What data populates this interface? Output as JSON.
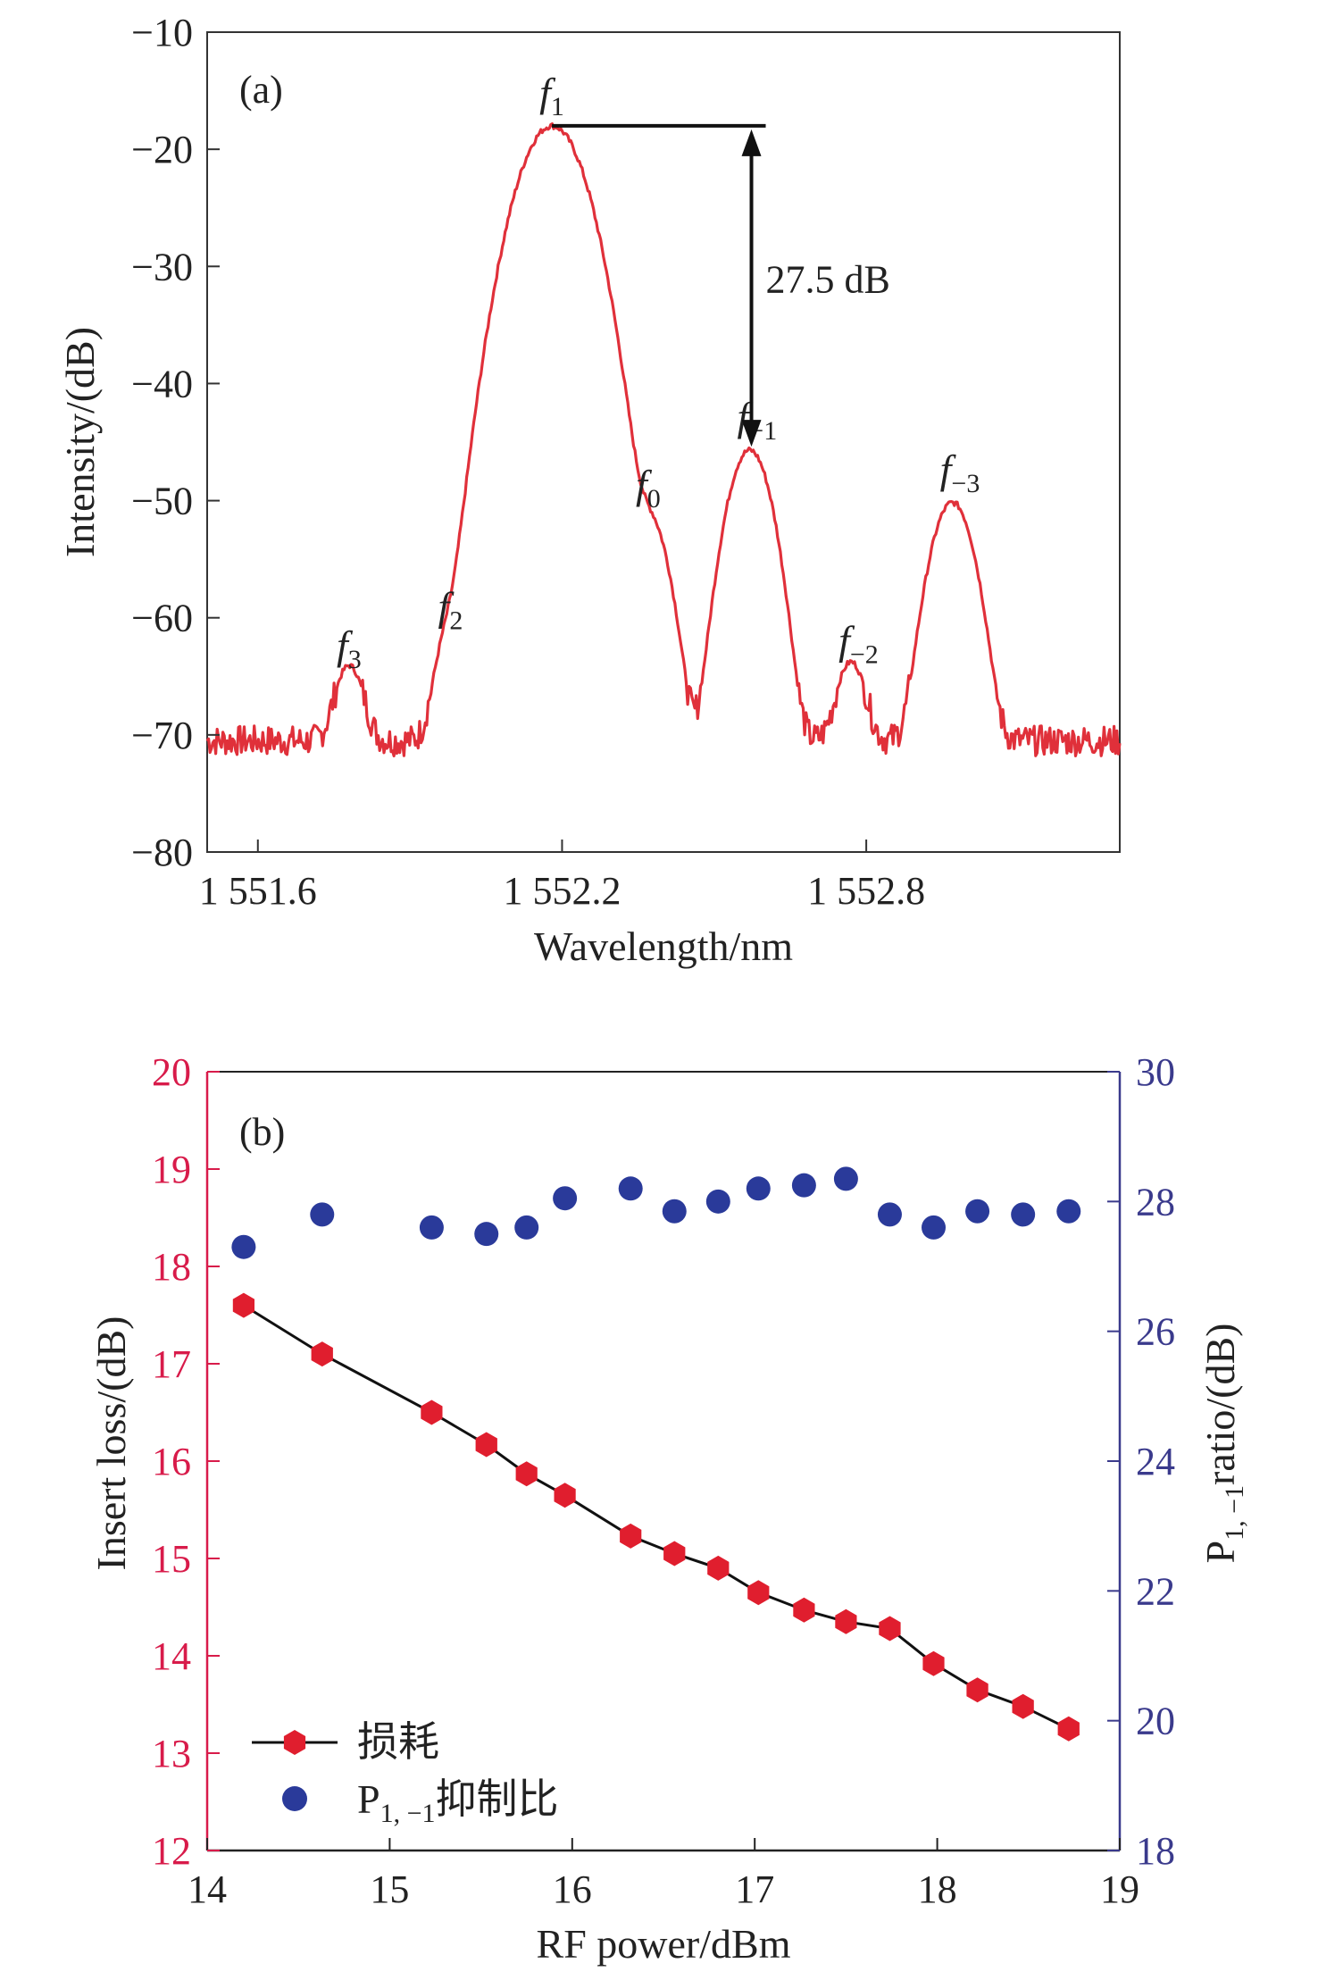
{
  "chart_data": [
    {
      "type": "line",
      "panel_label": "(a)",
      "xlabel": "Wavelength/nm",
      "ylabel": "Intensity/(dB)",
      "xlim": [
        1551.5,
        1553.3
      ],
      "ylim": [
        -80,
        -10
      ],
      "xticks": [
        {
          "value": 1551.6,
          "label": "1 551.6"
        },
        {
          "value": 1552.2,
          "label": "1 552.2"
        },
        {
          "value": 1552.8,
          "label": "1 552.8"
        }
      ],
      "yticks": [
        {
          "value": -10,
          "label": "−10"
        },
        {
          "value": -20,
          "label": "−20"
        },
        {
          "value": -30,
          "label": "−30"
        },
        {
          "value": -40,
          "label": "−40"
        },
        {
          "value": -50,
          "label": "−50"
        },
        {
          "value": -60,
          "label": "−60"
        },
        {
          "value": -70,
          "label": "−70"
        },
        {
          "value": -80,
          "label": "−80"
        }
      ],
      "grid": false,
      "line_color": "#e0303a",
      "baseline_db": -70.5,
      "peaks": [
        {
          "base": "f",
          "sub": "3",
          "x": 1551.78,
          "y": -65.2
        },
        {
          "base": "f",
          "sub": "2",
          "x": 1551.98,
          "y": -61.9
        },
        {
          "base": "f",
          "sub": "1",
          "x": 1552.18,
          "y": -18.0
        },
        {
          "base": "f",
          "sub": "0",
          "x": 1552.37,
          "y": -51.5
        },
        {
          "base": "f",
          "sub": "−1",
          "x": 1552.57,
          "y": -45.7
        },
        {
          "base": "f",
          "sub": "−2",
          "x": 1552.77,
          "y": -64.8
        },
        {
          "base": "f",
          "sub": "−3",
          "x": 1552.97,
          "y": -50.2
        }
      ],
      "annotation": {
        "text": "27.5 dB",
        "x": 1552.57,
        "y_top": -18.0,
        "y_bottom": -45.7
      }
    },
    {
      "type": "scatter",
      "panel_label": "(b)",
      "xlabel": "RF power/dBm",
      "ylabel_left": "Insert loss/(dB)",
      "ylabel_right": {
        "base": "P",
        "sub": "1, −1",
        "rest": "ratio/(dB)"
      },
      "xlim": [
        14,
        19
      ],
      "ylim_left": [
        12,
        20
      ],
      "ylim_right": [
        18,
        30
      ],
      "xticks": [
        "14",
        "15",
        "16",
        "17",
        "18",
        "19"
      ],
      "yticks_left": [
        "12",
        "13",
        "14",
        "15",
        "16",
        "17",
        "18",
        "19",
        "20"
      ],
      "yticks_right": [
        "18",
        "20",
        "22",
        "24",
        "26",
        "28",
        "30"
      ],
      "left_axis_color": "#d81b4a",
      "right_axis_color": "#3a3a8c",
      "grid": false,
      "legend_position": "bottom-left",
      "series": [
        {
          "name": "损耗",
          "axis": "left",
          "marker": "hexagon",
          "color": "#e01e2e",
          "line": true,
          "x": [
            14.2,
            14.63,
            15.23,
            15.53,
            15.75,
            15.96,
            16.32,
            16.56,
            16.8,
            17.02,
            17.27,
            17.5,
            17.74,
            17.98,
            18.22,
            18.47,
            18.72
          ],
          "y": [
            17.6,
            17.1,
            16.5,
            16.17,
            15.87,
            15.65,
            15.23,
            15.05,
            14.9,
            14.65,
            14.47,
            14.35,
            14.28,
            13.92,
            13.65,
            13.48,
            13.25
          ]
        },
        {
          "name": "P",
          "name_sub": "1, −1",
          "name_rest": "抑制比",
          "axis": "right",
          "marker": "circle",
          "color": "#2a3a9a",
          "line": false,
          "x": [
            14.2,
            14.63,
            15.23,
            15.53,
            15.75,
            15.96,
            16.32,
            16.56,
            16.8,
            17.02,
            17.27,
            17.5,
            17.74,
            17.98,
            18.22,
            18.47,
            18.72
          ],
          "y": [
            27.3,
            27.8,
            27.6,
            27.5,
            27.6,
            28.05,
            28.2,
            27.85,
            28.0,
            28.2,
            28.25,
            28.35,
            27.8,
            27.6,
            27.85,
            27.8,
            27.85
          ]
        }
      ]
    }
  ]
}
